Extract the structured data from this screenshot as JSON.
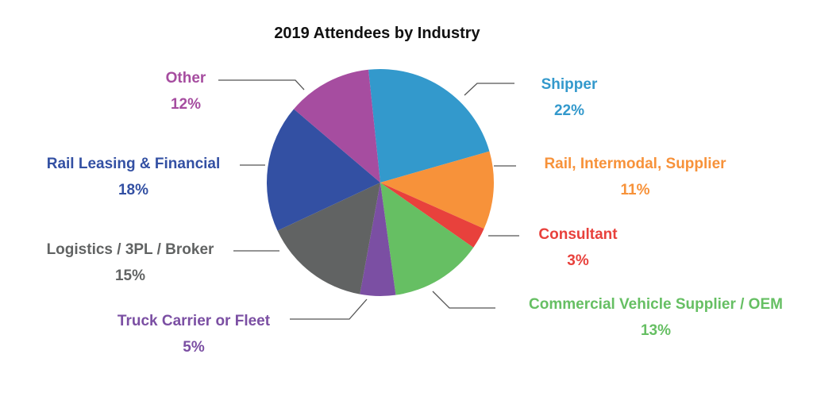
{
  "chart_data": {
    "type": "pie",
    "title": "2019 Attendees by Industry",
    "slices": [
      {
        "label": "Shipper",
        "percent_label": "22%",
        "value": 22,
        "color": "#3399CC"
      },
      {
        "label": "Rail, Intermodal, Supplier",
        "percent_label": "11%",
        "value": 11,
        "color": "#F7923A"
      },
      {
        "label": "Consultant",
        "percent_label": "3%",
        "value": 3,
        "color": "#E8413C"
      },
      {
        "label": "Commercial Vehicle Supplier / OEM",
        "percent_label": "13%",
        "value": 13,
        "color": "#66BF63"
      },
      {
        "label": "Truck Carrier or Fleet",
        "percent_label": "5%",
        "value": 5,
        "color": "#7B4FA3"
      },
      {
        "label": "Logistics / 3PL / Broker",
        "percent_label": "15%",
        "value": 15,
        "color": "#616363"
      },
      {
        "label": "Rail Leasing & Financial",
        "percent_label": "18%",
        "value": 18,
        "color": "#3350A3"
      },
      {
        "label": "Other",
        "percent_label": "12%",
        "value": 12,
        "color": "#A64DA0"
      }
    ],
    "label_colors": {
      "Shipper": "#3399CC",
      "Rail, Intermodal, Supplier": "#F7923A",
      "Consultant": "#E8413C",
      "Commercial Vehicle Supplier / OEM": "#66BF63",
      "Truck Carrier or Fleet": "#7B4FA3",
      "Logistics / 3PL / Broker": "#616363",
      "Rail Leasing & Financial": "#3350A3",
      "Other": "#A64DA0"
    },
    "legend": "none (labels placed beside slices with leader lines)"
  }
}
